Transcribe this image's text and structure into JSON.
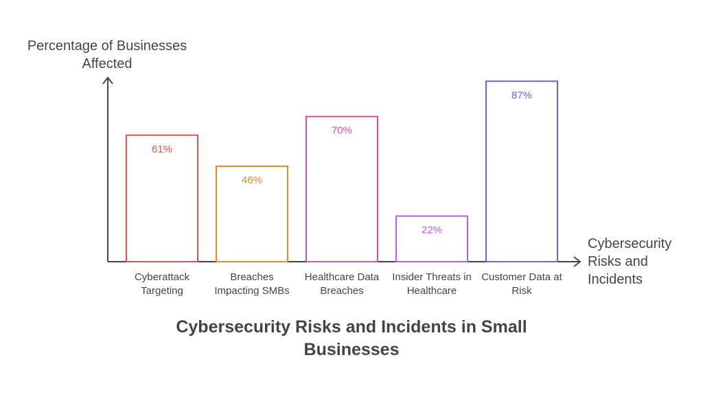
{
  "chart_data": {
    "type": "bar",
    "title": "Cybersecurity Risks and Incidents in Small Businesses",
    "xlabel": "Cybersecurity Risks and Incidents",
    "ylabel": "Percentage of Businesses Affected",
    "categories": [
      "Cyberattack Targeting",
      "Breaches Impacting SMBs",
      "Healthcare Data Breaches",
      "Insider Threats in Healthcare",
      "Customer Data at Risk"
    ],
    "values": [
      61,
      46,
      70,
      22,
      87
    ],
    "data_labels": [
      "61%",
      "46%",
      "70%",
      "22%",
      "87%"
    ],
    "colors": [
      "#e0514f",
      "#e08a2e",
      "#d84fa8",
      "#b95fe0",
      "#7b5be0"
    ],
    "ylim": [
      0,
      100
    ],
    "grid": false,
    "legend": "none"
  }
}
